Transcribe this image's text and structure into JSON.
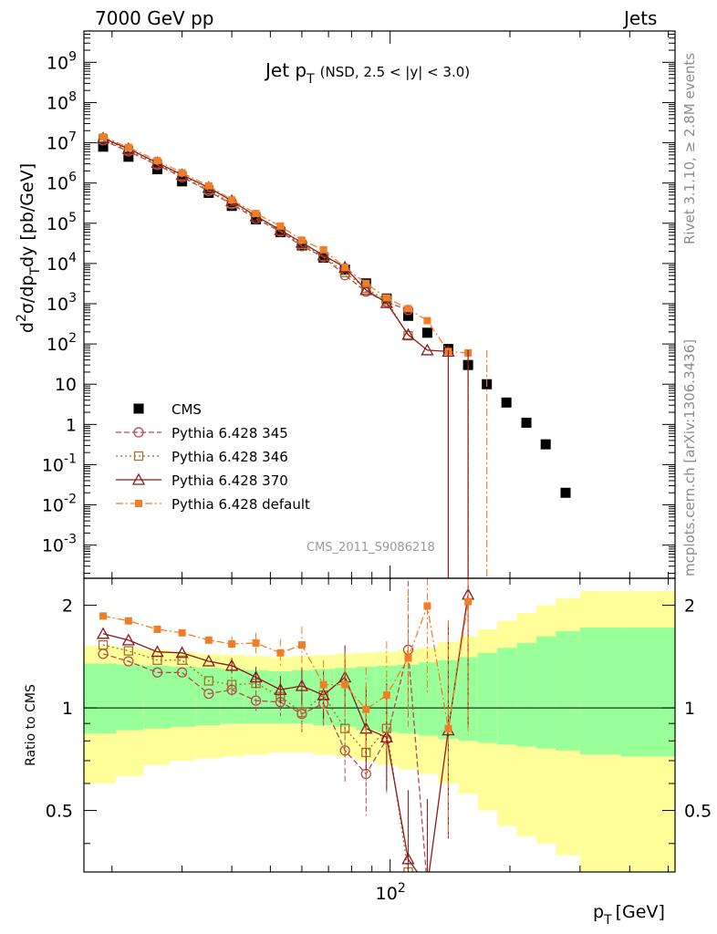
{
  "header": {
    "left": "7000 GeV pp",
    "right": "Jets"
  },
  "side_labels": {
    "rivet": "Rivet 3.1.10, ≥ 2.8M events",
    "mcplots": "mcplots.cern.ch [arXiv:1306.3436]"
  },
  "watermark": "CMS_2011_S9086218",
  "chart_data": [
    {
      "type": "scatter",
      "panel": "main",
      "title": "Jet p_T (NSD, 2.5 < |y| < 3.0)",
      "title_parts": {
        "main": "Jet p",
        "sub": "T",
        "suffix": "(NSD, 2.5 < |y| < 3.0)"
      },
      "xlabel": "p_T [GeV]",
      "ylabel": "d²σ/dp_T dy [pb/GeV]",
      "xscale": "log",
      "yscale": "log",
      "xlim": [
        17,
        520
      ],
      "ylim": [
        0.00015,
        6000000000.0
      ],
      "ytick_labels": [
        "10^-3",
        "10^-2",
        "10^-1",
        "1",
        "10",
        "10^2",
        "10^3",
        "10^4",
        "10^5",
        "10^6",
        "10^7",
        "10^8",
        "10^9"
      ],
      "xtick_labels": [
        "10^2"
      ],
      "legend_position": "bottom-left",
      "series": [
        {
          "name": "CMS",
          "color": "#000000",
          "marker": "square-filled",
          "x": [
            19,
            22,
            26,
            30,
            35,
            40,
            46,
            53,
            60,
            68,
            77,
            87,
            98,
            111,
            124,
            140,
            157,
            175,
            196,
            220,
            246,
            276,
            340
          ],
          "y": [
            8000000.0,
            4500000.0,
            2200000.0,
            1100000.0,
            570000.0,
            270000.0,
            125000.0,
            60000.0,
            28000.0,
            14000.0,
            7000.0,
            3200.0,
            1350.0,
            500,
            190,
            75,
            30,
            10,
            3.5,
            1.1,
            0.32,
            0.02,
            0.0
          ]
        },
        {
          "name": "Pythia 6.428 345",
          "color": "#b84a52",
          "marker": "circle-open",
          "line": "dashed",
          "x": [
            19,
            22,
            26,
            30,
            35,
            40,
            46,
            53,
            60,
            68,
            77,
            87,
            98,
            111
          ],
          "y": [
            11500000.0,
            6100000.0,
            2800000.0,
            1400000.0,
            630000.0,
            295000.0,
            130000.0,
            62000.0,
            27000.0,
            14500.0,
            5100.0,
            2000.0,
            1100.0,
            700
          ]
        },
        {
          "name": "Pythia 6.428 346",
          "color": "#a0742a",
          "marker": "square-open",
          "line": "dotted",
          "x": [
            19,
            22,
            26,
            30,
            35,
            40,
            46,
            53,
            60,
            68,
            77,
            87,
            98,
            111
          ],
          "y": [
            12500000.0,
            6600000.0,
            3000000.0,
            1500000.0,
            680000.0,
            310000.0,
            145000.0,
            65000.0,
            30000.0,
            15000.0,
            6000.0,
            2400.0,
            1200.0,
            160
          ]
        },
        {
          "name": "Pythia 6.428 370",
          "color": "#8b1a1a",
          "marker": "triangle-open",
          "line": "solid",
          "x": [
            19,
            22,
            26,
            30,
            35,
            40,
            46,
            53,
            60,
            68,
            77,
            87,
            98,
            111,
            124,
            140
          ],
          "y": [
            13000000.0,
            7100000.0,
            3200000.0,
            1600000.0,
            770000.0,
            360000.0,
            150000.0,
            68000.0,
            33000.0,
            16000.0,
            8000.0,
            2200.0,
            1050.0,
            170,
            70,
            65
          ]
        },
        {
          "name": "Pythia 6.428 default",
          "color": "#f07e26",
          "marker": "square-filled-small",
          "line": "dashdot",
          "x": [
            19,
            22,
            26,
            30,
            35,
            40,
            46,
            53,
            60,
            68,
            77,
            87,
            98,
            111,
            124,
            140,
            157
          ],
          "y": [
            14000000.0,
            7700000.0,
            3600000.0,
            1800000.0,
            850000.0,
            380000.0,
            175000.0,
            85000.0,
            38000.0,
            22000.0,
            8000.0,
            3200.0,
            1400.0,
            750,
            380,
            65,
            60
          ]
        }
      ]
    },
    {
      "type": "line",
      "panel": "ratio",
      "ylabel": "Ratio to CMS",
      "xscale": "log",
      "yscale": "log",
      "xlim": [
        17,
        520
      ],
      "ylim": [
        0.33,
        2.4
      ],
      "ytick_labels": [
        "0.5",
        "1",
        "2"
      ],
      "reference_line": 1,
      "bands": {
        "x_edges": [
          17,
          20.5,
          24,
          28,
          32.5,
          37.5,
          43,
          49.5,
          56.5,
          64,
          72.5,
          82,
          92.5,
          104.5,
          117.5,
          132,
          148.5,
          166,
          186,
          208,
          233,
          261,
          300,
          380,
          520
        ],
        "inner_low": [
          0.84,
          0.86,
          0.87,
          0.88,
          0.89,
          0.9,
          0.9,
          0.9,
          0.9,
          0.89,
          0.88,
          0.86,
          0.85,
          0.84,
          0.83,
          0.81,
          0.8,
          0.79,
          0.78,
          0.77,
          0.76,
          0.75,
          0.73,
          0.72
        ],
        "inner_high": [
          1.35,
          1.34,
          1.33,
          1.32,
          1.31,
          1.3,
          1.29,
          1.28,
          1.29,
          1.3,
          1.31,
          1.32,
          1.33,
          1.34,
          1.36,
          1.38,
          1.41,
          1.45,
          1.5,
          1.55,
          1.62,
          1.68,
          1.72,
          1.72
        ],
        "outer_low": [
          0.6,
          0.63,
          0.68,
          0.7,
          0.71,
          0.72,
          0.73,
          0.74,
          0.74,
          0.73,
          0.72,
          0.7,
          0.68,
          0.66,
          0.64,
          0.6,
          0.56,
          0.5,
          0.45,
          0.42,
          0.4,
          0.37,
          0.33,
          0.33
        ],
        "outer_high": [
          1.52,
          1.5,
          1.48,
          1.46,
          1.44,
          1.43,
          1.42,
          1.41,
          1.42,
          1.43,
          1.44,
          1.45,
          1.46,
          1.48,
          1.5,
          1.56,
          1.62,
          1.7,
          1.8,
          1.9,
          2.0,
          2.1,
          2.2,
          2.2
        ],
        "inner_color": "#99ff99",
        "outer_color": "#ffff99"
      },
      "series": [
        {
          "name": "Pythia 6.428 345",
          "color": "#b84a52",
          "x": [
            19,
            22,
            26,
            30,
            35,
            40,
            46,
            53,
            60,
            68,
            77,
            87,
            98,
            111,
            124
          ],
          "y": [
            1.44,
            1.37,
            1.27,
            1.27,
            1.1,
            1.13,
            1.05,
            1.04,
            0.96,
            1.03,
            0.75,
            0.64,
            0.81,
            1.48,
            0.3
          ]
        },
        {
          "name": "Pythia 6.428 346",
          "color": "#a0742a",
          "x": [
            19,
            22,
            26,
            30,
            35,
            40,
            46,
            53,
            60,
            68,
            77,
            87,
            98,
            111
          ],
          "y": [
            1.53,
            1.47,
            1.38,
            1.38,
            1.2,
            1.17,
            1.18,
            1.08,
            0.97,
            1.09,
            0.87,
            0.74,
            0.87,
            0.33
          ]
        },
        {
          "name": "Pythia 6.428 370",
          "color": "#8b1a1a",
          "x": [
            19,
            22,
            26,
            30,
            35,
            40,
            46,
            53,
            60,
            68,
            77,
            87,
            98,
            111,
            124,
            140,
            157
          ],
          "y": [
            1.65,
            1.58,
            1.46,
            1.45,
            1.37,
            1.33,
            1.23,
            1.13,
            1.16,
            1.09,
            1.23,
            0.87,
            0.82,
            0.36,
            0.3,
            0.86,
            2.15
          ]
        },
        {
          "name": "Pythia 6.428 default",
          "color": "#f07e26",
          "x": [
            19,
            22,
            26,
            30,
            35,
            40,
            46,
            53,
            60,
            68,
            77,
            87,
            98,
            111,
            124,
            140,
            157
          ],
          "y": [
            1.86,
            1.8,
            1.7,
            1.66,
            1.58,
            1.54,
            1.55,
            1.45,
            1.53,
            1.17,
            1.17,
            0.99,
            1.09,
            1.4,
            1.99,
            0.87,
            2.05
          ]
        }
      ]
    }
  ]
}
